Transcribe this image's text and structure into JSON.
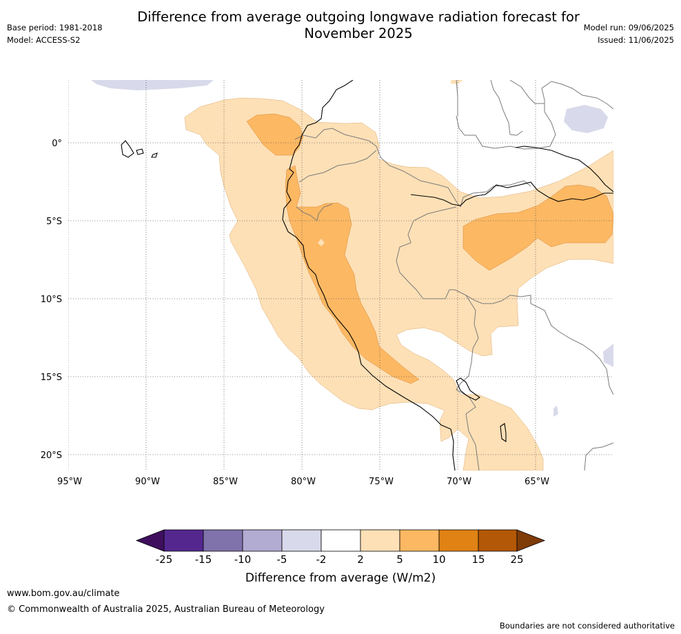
{
  "header": {
    "title_line1": "Difference from average outgoing longwave radiation forecast for",
    "title_line2": "November 2025",
    "base_period": "Base period: 1981-2018",
    "model": "Model: ACCESS-S2",
    "model_run": "Model run: 09/06/2025",
    "issued": "Issued: 11/06/2025"
  },
  "map": {
    "lat_labels": [
      "0°",
      "5°S",
      "10°S",
      "15°S",
      "20°S"
    ],
    "lon_labels": [
      "95°W",
      "90°W",
      "85°W",
      "80°W",
      "75°W",
      "70°W",
      "65°W"
    ]
  },
  "colorbar": {
    "ticks": [
      "-25",
      "-15",
      "-10",
      "-5",
      "-2",
      "2",
      "5",
      "10",
      "15",
      "25"
    ],
    "colors": [
      "#3f0f5e",
      "#54278f",
      "#8073ac",
      "#b2abd2",
      "#d8daeb",
      "#ffffff",
      "#fee0b6",
      "#fdb863",
      "#e08214",
      "#b35806",
      "#7f3b08"
    ],
    "label": "Difference from average (W/m2)"
  },
  "footer": {
    "url": "www.bom.gov.au/climate",
    "copyright": "© Commonwealth of Australia 2025, Australian Bureau of Meteorology",
    "note": "Boundaries are not considered authoritative"
  }
}
